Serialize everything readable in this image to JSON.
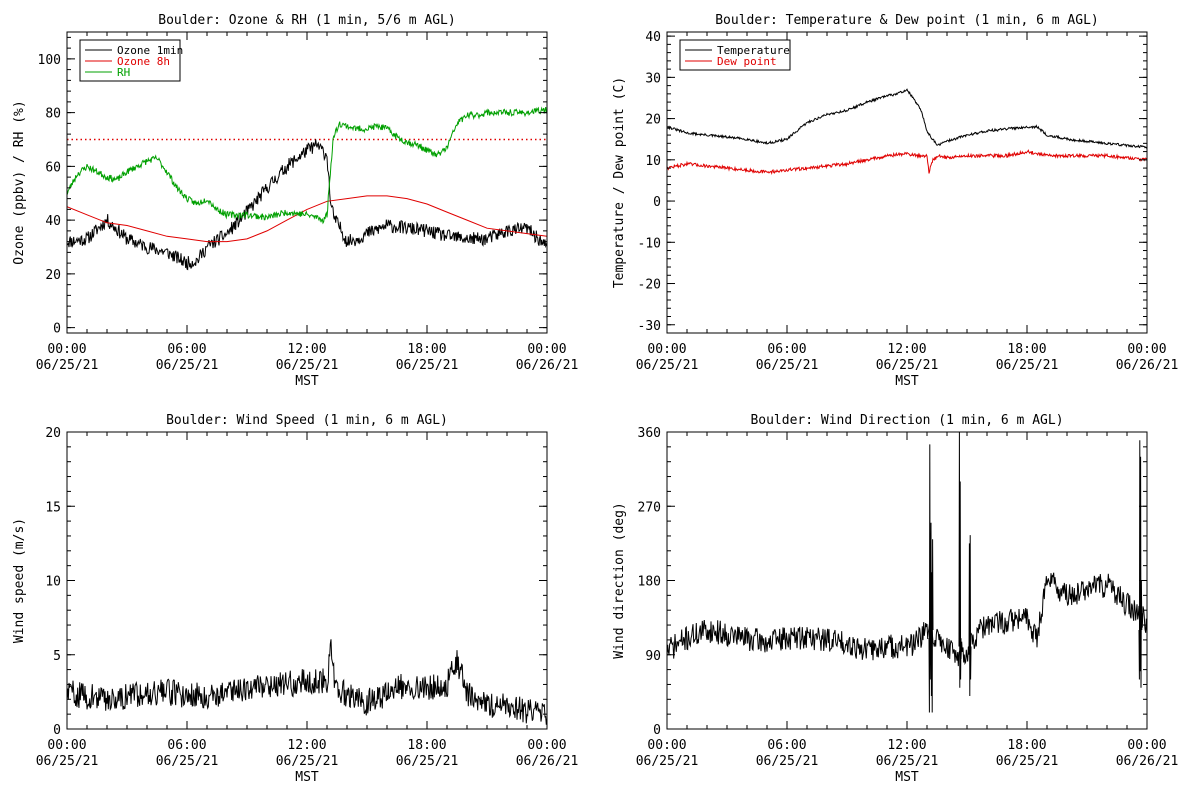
{
  "chart_data": [
    {
      "type": "line",
      "title": "Boulder: Ozone & RH (1 min, 5/6 m AGL)",
      "ylabel": "Ozone (ppbv) / RH (%)",
      "xlabel": "MST",
      "xlim": [
        0,
        24
      ],
      "ylim": [
        -2,
        110
      ],
      "y_ticks": [
        0,
        20,
        40,
        60,
        80,
        100
      ],
      "x_ticks": [
        {
          "x": 0,
          "time": "00:00",
          "date": "06/25/21"
        },
        {
          "x": 6,
          "time": "06:00",
          "date": "06/25/21"
        },
        {
          "x": 12,
          "time": "12:00",
          "date": "06/25/21"
        },
        {
          "x": 18,
          "time": "18:00",
          "date": "06/25/21"
        },
        {
          "x": 24,
          "time": "00:00",
          "date": "06/26/21"
        }
      ],
      "reference_line": {
        "y": 70,
        "color": "#e00000",
        "style": "dotted"
      },
      "legend": {
        "position": "top-left",
        "labels": [
          "Ozone 1min",
          "Ozone 8h",
          "RH"
        ]
      },
      "series": [
        {
          "name": "Ozone 1min",
          "color": "#000000",
          "noise": 2.5,
          "seed": 11,
          "x": [
            0,
            1,
            2,
            3,
            4,
            5,
            6,
            6.5,
            7,
            8,
            9,
            10,
            11,
            12,
            12.5,
            13,
            13.2,
            13.4,
            13.6,
            14,
            14.5,
            15,
            16,
            17,
            18,
            19,
            20,
            21,
            22,
            23,
            24
          ],
          "y": [
            32,
            33,
            40,
            33,
            30,
            28,
            24,
            25,
            30,
            35,
            43,
            52,
            60,
            66,
            68,
            64,
            45,
            40,
            38,
            32,
            33,
            35,
            38,
            37,
            36,
            34,
            33,
            33,
            36,
            37,
            30
          ]
        },
        {
          "name": "Ozone 8h",
          "color": "#e00000",
          "noise": 0,
          "seed": 0,
          "x": [
            0,
            1,
            2,
            3,
            4,
            5,
            6,
            7,
            8,
            9,
            10,
            11,
            12,
            13,
            14,
            15,
            16,
            17,
            18,
            19,
            20,
            21,
            22,
            23,
            24
          ],
          "y": [
            45,
            42,
            39,
            38,
            36,
            34,
            33,
            32,
            32,
            33,
            36,
            40,
            44,
            47,
            48,
            49,
            49,
            48,
            46,
            43,
            40,
            37,
            36,
            35,
            34
          ]
        },
        {
          "name": "RH",
          "color": "#00a000",
          "noise": 1.2,
          "seed": 23,
          "x": [
            0,
            0.5,
            1,
            1.5,
            2,
            2.5,
            3,
            3.5,
            4,
            4.5,
            5,
            5.5,
            6,
            6.5,
            7,
            7.5,
            8,
            9,
            10,
            11,
            12,
            12.5,
            12.8,
            13,
            13.3,
            13.6,
            14,
            14.5,
            15,
            15.5,
            16,
            16.5,
            17,
            17.5,
            18,
            18.5,
            19,
            19.5,
            20,
            20.5,
            21,
            22,
            23,
            24
          ],
          "y": [
            50,
            57,
            60,
            58,
            56,
            55,
            58,
            60,
            62,
            63,
            58,
            52,
            48,
            46,
            48,
            44,
            42,
            42,
            41,
            43,
            42,
            41,
            40,
            42,
            70,
            76,
            75,
            74,
            74,
            75,
            74,
            71,
            69,
            68,
            66,
            64,
            67,
            76,
            79,
            79,
            80,
            80,
            80,
            81
          ]
        }
      ]
    },
    {
      "type": "line",
      "title": "Boulder: Temperature & Dew point (1 min, 6 m AGL)",
      "ylabel": "Temperature / Dew point (C)",
      "xlabel": "MST",
      "xlim": [
        0,
        24
      ],
      "ylim": [
        -32,
        41
      ],
      "y_ticks": [
        -30,
        -20,
        -10,
        0,
        10,
        20,
        30,
        40
      ],
      "x_ticks": [
        {
          "x": 0,
          "time": "00:00",
          "date": "06/25/21"
        },
        {
          "x": 6,
          "time": "06:00",
          "date": "06/25/21"
        },
        {
          "x": 12,
          "time": "12:00",
          "date": "06/25/21"
        },
        {
          "x": 18,
          "time": "18:00",
          "date": "06/25/21"
        },
        {
          "x": 24,
          "time": "00:00",
          "date": "06/26/21"
        }
      ],
      "legend": {
        "position": "top-left",
        "labels": [
          "Temperature",
          "Dew point"
        ]
      },
      "series": [
        {
          "name": "Temperature",
          "color": "#000000",
          "noise": 0.3,
          "seed": 31,
          "x": [
            0,
            1,
            2,
            3,
            4,
            5,
            6,
            7,
            8,
            9,
            10,
            11,
            11.5,
            12,
            12.3,
            12.7,
            13,
            13.5,
            14,
            15,
            16,
            17,
            18,
            18.5,
            19,
            20,
            21,
            22,
            23,
            24
          ],
          "y": [
            18,
            16.5,
            16,
            15.5,
            15,
            14,
            15,
            19,
            21,
            22,
            24,
            25.5,
            26,
            27,
            25,
            22,
            17,
            13.5,
            14.5,
            16,
            17,
            17.5,
            18,
            18,
            16,
            15,
            14.5,
            14,
            13.5,
            13
          ]
        },
        {
          "name": "Dew point",
          "color": "#e00000",
          "noise": 0.4,
          "seed": 47,
          "x": [
            0,
            1,
            2,
            3,
            4,
            5,
            6,
            7,
            8,
            9,
            10,
            11,
            12,
            12.5,
            13,
            13.1,
            13.3,
            13.6,
            14,
            15,
            16,
            17,
            18,
            19,
            20,
            21,
            22,
            23,
            24
          ],
          "y": [
            8,
            9,
            8.5,
            8,
            7.5,
            7,
            7.5,
            8,
            8.5,
            9,
            10,
            11,
            11.5,
            11,
            11,
            7,
            10,
            11,
            10.5,
            11,
            11,
            11,
            12,
            11,
            11,
            11,
            11,
            10.5,
            10
          ]
        }
      ]
    },
    {
      "type": "line",
      "title": "Boulder: Wind Speed (1 min, 6 m AGL)",
      "ylabel": "Wind speed (m/s)",
      "xlabel": "MST",
      "xlim": [
        0,
        24
      ],
      "ylim": [
        0,
        20
      ],
      "y_ticks": [
        0,
        5,
        10,
        15,
        20
      ],
      "x_ticks": [
        {
          "x": 0,
          "time": "00:00",
          "date": "06/25/21"
        },
        {
          "x": 6,
          "time": "06:00",
          "date": "06/25/21"
        },
        {
          "x": 12,
          "time": "12:00",
          "date": "06/25/21"
        },
        {
          "x": 18,
          "time": "18:00",
          "date": "06/25/21"
        },
        {
          "x": 24,
          "time": "00:00",
          "date": "06/26/21"
        }
      ],
      "series": [
        {
          "name": "",
          "color": "#000000",
          "noise": 0.9,
          "seed": 59,
          "x": [
            0,
            1,
            2,
            3,
            4,
            5,
            6,
            7,
            8,
            9,
            10,
            11,
            12,
            13,
            13.2,
            13.4,
            14,
            15,
            16,
            17,
            18,
            19,
            19.5,
            20,
            21,
            22,
            23,
            24
          ],
          "y": [
            2.5,
            2.2,
            2,
            2.2,
            2.5,
            2.5,
            2.3,
            2.2,
            2.5,
            2.8,
            3,
            3,
            3.2,
            3.2,
            5.5,
            3,
            2.2,
            1.8,
            2.4,
            3,
            2.8,
            3,
            4.5,
            2.5,
            1.5,
            1.8,
            1.2,
            0.8
          ]
        }
      ]
    },
    {
      "type": "line",
      "title": "Boulder: Wind Direction (1 min, 6 m AGL)",
      "ylabel": "Wind direction (deg)",
      "xlabel": "MST",
      "xlim": [
        0,
        24
      ],
      "ylim": [
        0,
        360
      ],
      "y_ticks": [
        0,
        90,
        180,
        270,
        360
      ],
      "x_ticks": [
        {
          "x": 0,
          "time": "00:00",
          "date": "06/25/21"
        },
        {
          "x": 6,
          "time": "06:00",
          "date": "06/25/21"
        },
        {
          "x": 12,
          "time": "12:00",
          "date": "06/25/21"
        },
        {
          "x": 18,
          "time": "18:00",
          "date": "06/25/21"
        },
        {
          "x": 24,
          "time": "00:00",
          "date": "06/26/21"
        }
      ],
      "series": [
        {
          "name": "",
          "color": "#000000",
          "noise": 15,
          "seed": 71,
          "x": [
            0,
            1,
            2,
            3,
            4,
            5,
            6,
            7,
            8,
            9,
            10,
            11,
            12,
            12.5,
            13,
            13.5,
            14,
            14.5,
            15,
            15.5,
            16,
            17,
            18,
            18.5,
            19,
            20,
            21,
            22,
            23,
            23.5,
            24
          ],
          "y": [
            95,
            110,
            120,
            115,
            110,
            105,
            110,
            112,
            108,
            105,
            95,
            100,
            100,
            105,
            120,
            110,
            100,
            90,
            95,
            115,
            125,
            130,
            135,
            110,
            185,
            160,
            170,
            175,
            150,
            140,
            130
          ]
        },
        {
          "name": "",
          "color": "#000000",
          "noise": 0,
          "seed": 0,
          "x": [
            13.1,
            13.12,
            13.14,
            13.16,
            13.18,
            13.2,
            13.22,
            13.24,
            13.26,
            13.28,
            13.3
          ],
          "y": [
            110,
            20,
            345,
            60,
            120,
            250,
            40,
            190,
            20,
            230,
            120
          ]
        },
        {
          "name": "",
          "color": "#000000",
          "noise": 0,
          "seed": 0,
          "x": [
            14.6,
            14.62,
            14.64,
            14.66,
            14.68,
            14.7
          ],
          "y": [
            100,
            360,
            50,
            300,
            60,
            110
          ]
        },
        {
          "name": "",
          "color": "#000000",
          "noise": 0,
          "seed": 0,
          "x": [
            15.1,
            15.12,
            15.14,
            15.16,
            15.18,
            15.2
          ],
          "y": [
            90,
            225,
            40,
            235,
            60,
            100
          ]
        },
        {
          "name": "",
          "color": "#000000",
          "noise": 0,
          "seed": 0,
          "x": [
            23.6,
            23.62,
            23.64,
            23.66,
            23.68,
            23.7,
            23.72,
            23.74
          ],
          "y": [
            120,
            60,
            350,
            70,
            330,
            50,
            180,
            120
          ]
        }
      ]
    }
  ]
}
